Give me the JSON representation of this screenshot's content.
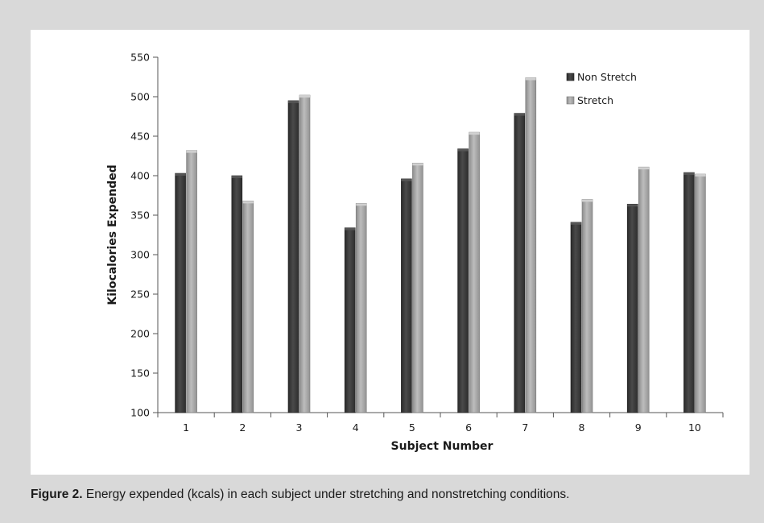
{
  "figure": {
    "caption_label": "Figure 2.",
    "caption_text": " Energy expended (kcals) in each subject under stretching and nonstretching conditions."
  },
  "chart_data": {
    "type": "bar",
    "categories": [
      "1",
      "2",
      "3",
      "4",
      "5",
      "6",
      "7",
      "8",
      "9",
      "10"
    ],
    "series": [
      {
        "name": "Non Stretch",
        "color": "#3d3d3d",
        "values": [
          403,
          400,
          495,
          334,
          396,
          434,
          479,
          341,
          364,
          404
        ]
      },
      {
        "name": "Stretch",
        "color": "#a6a6a6",
        "values": [
          432,
          368,
          502,
          365,
          416,
          455,
          524,
          370,
          411,
          402
        ]
      }
    ],
    "xlabel": "Subject Number",
    "ylabel": "Kilocalories Expended",
    "ylim": [
      100,
      550
    ],
    "yticks": [
      100,
      150,
      200,
      250,
      300,
      350,
      400,
      450,
      500,
      550
    ],
    "grid": false,
    "legend_position": "top-right"
  }
}
